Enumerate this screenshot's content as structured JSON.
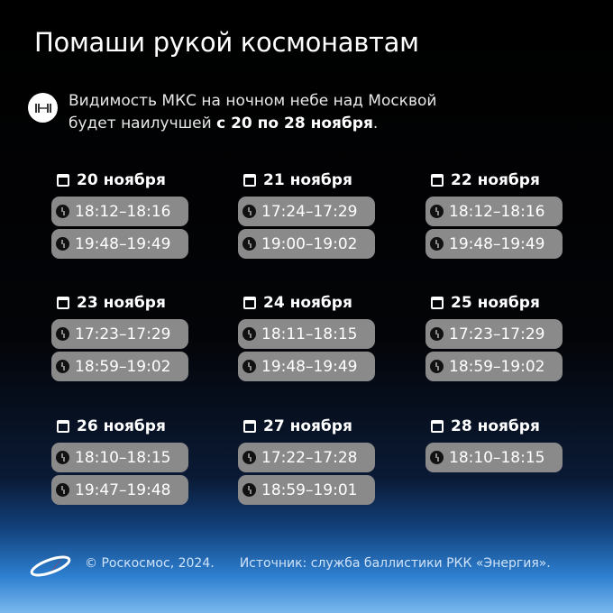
{
  "title": "Помаши рукой космонавтам",
  "intro": {
    "icon": "iss-icon",
    "line1": "Видимость МКС на ночном небе над Москвой",
    "line2_pre": "будет наилучшей ",
    "line2_bold": "с 20 по 28 ноября",
    "line2_post": "."
  },
  "days": [
    {
      "date": "20 ноября",
      "times": [
        "18:12–18:16",
        "19:48–19:49"
      ]
    },
    {
      "date": "21 ноября",
      "times": [
        "17:24–17:29",
        "19:00–19:02"
      ]
    },
    {
      "date": "22 ноября",
      "times": [
        "18:12–18:16",
        "19:48–19:49"
      ]
    },
    {
      "date": "23 ноября",
      "times": [
        "17:23–17:29",
        "18:59–19:02"
      ]
    },
    {
      "date": "24 ноября",
      "times": [
        "18:11–18:15",
        "19:48–19:49"
      ]
    },
    {
      "date": "25 ноября",
      "times": [
        "17:23–17:29",
        "18:59–19:02"
      ]
    },
    {
      "date": "26 ноября",
      "times": [
        "18:10–18:15",
        "19:47–19:48"
      ]
    },
    {
      "date": "27 ноября",
      "times": [
        "17:22–17:28",
        "18:59–19:01"
      ]
    },
    {
      "date": "28 ноября",
      "times": [
        "18:10–18:15"
      ]
    }
  ],
  "footer": {
    "copyright": "© Роскосмос, 2024.",
    "source": "Источник: служба баллистики РКК «Энергия»."
  },
  "colors": {
    "pill": "#8a8a8a",
    "logo_red": "#e3242b"
  }
}
